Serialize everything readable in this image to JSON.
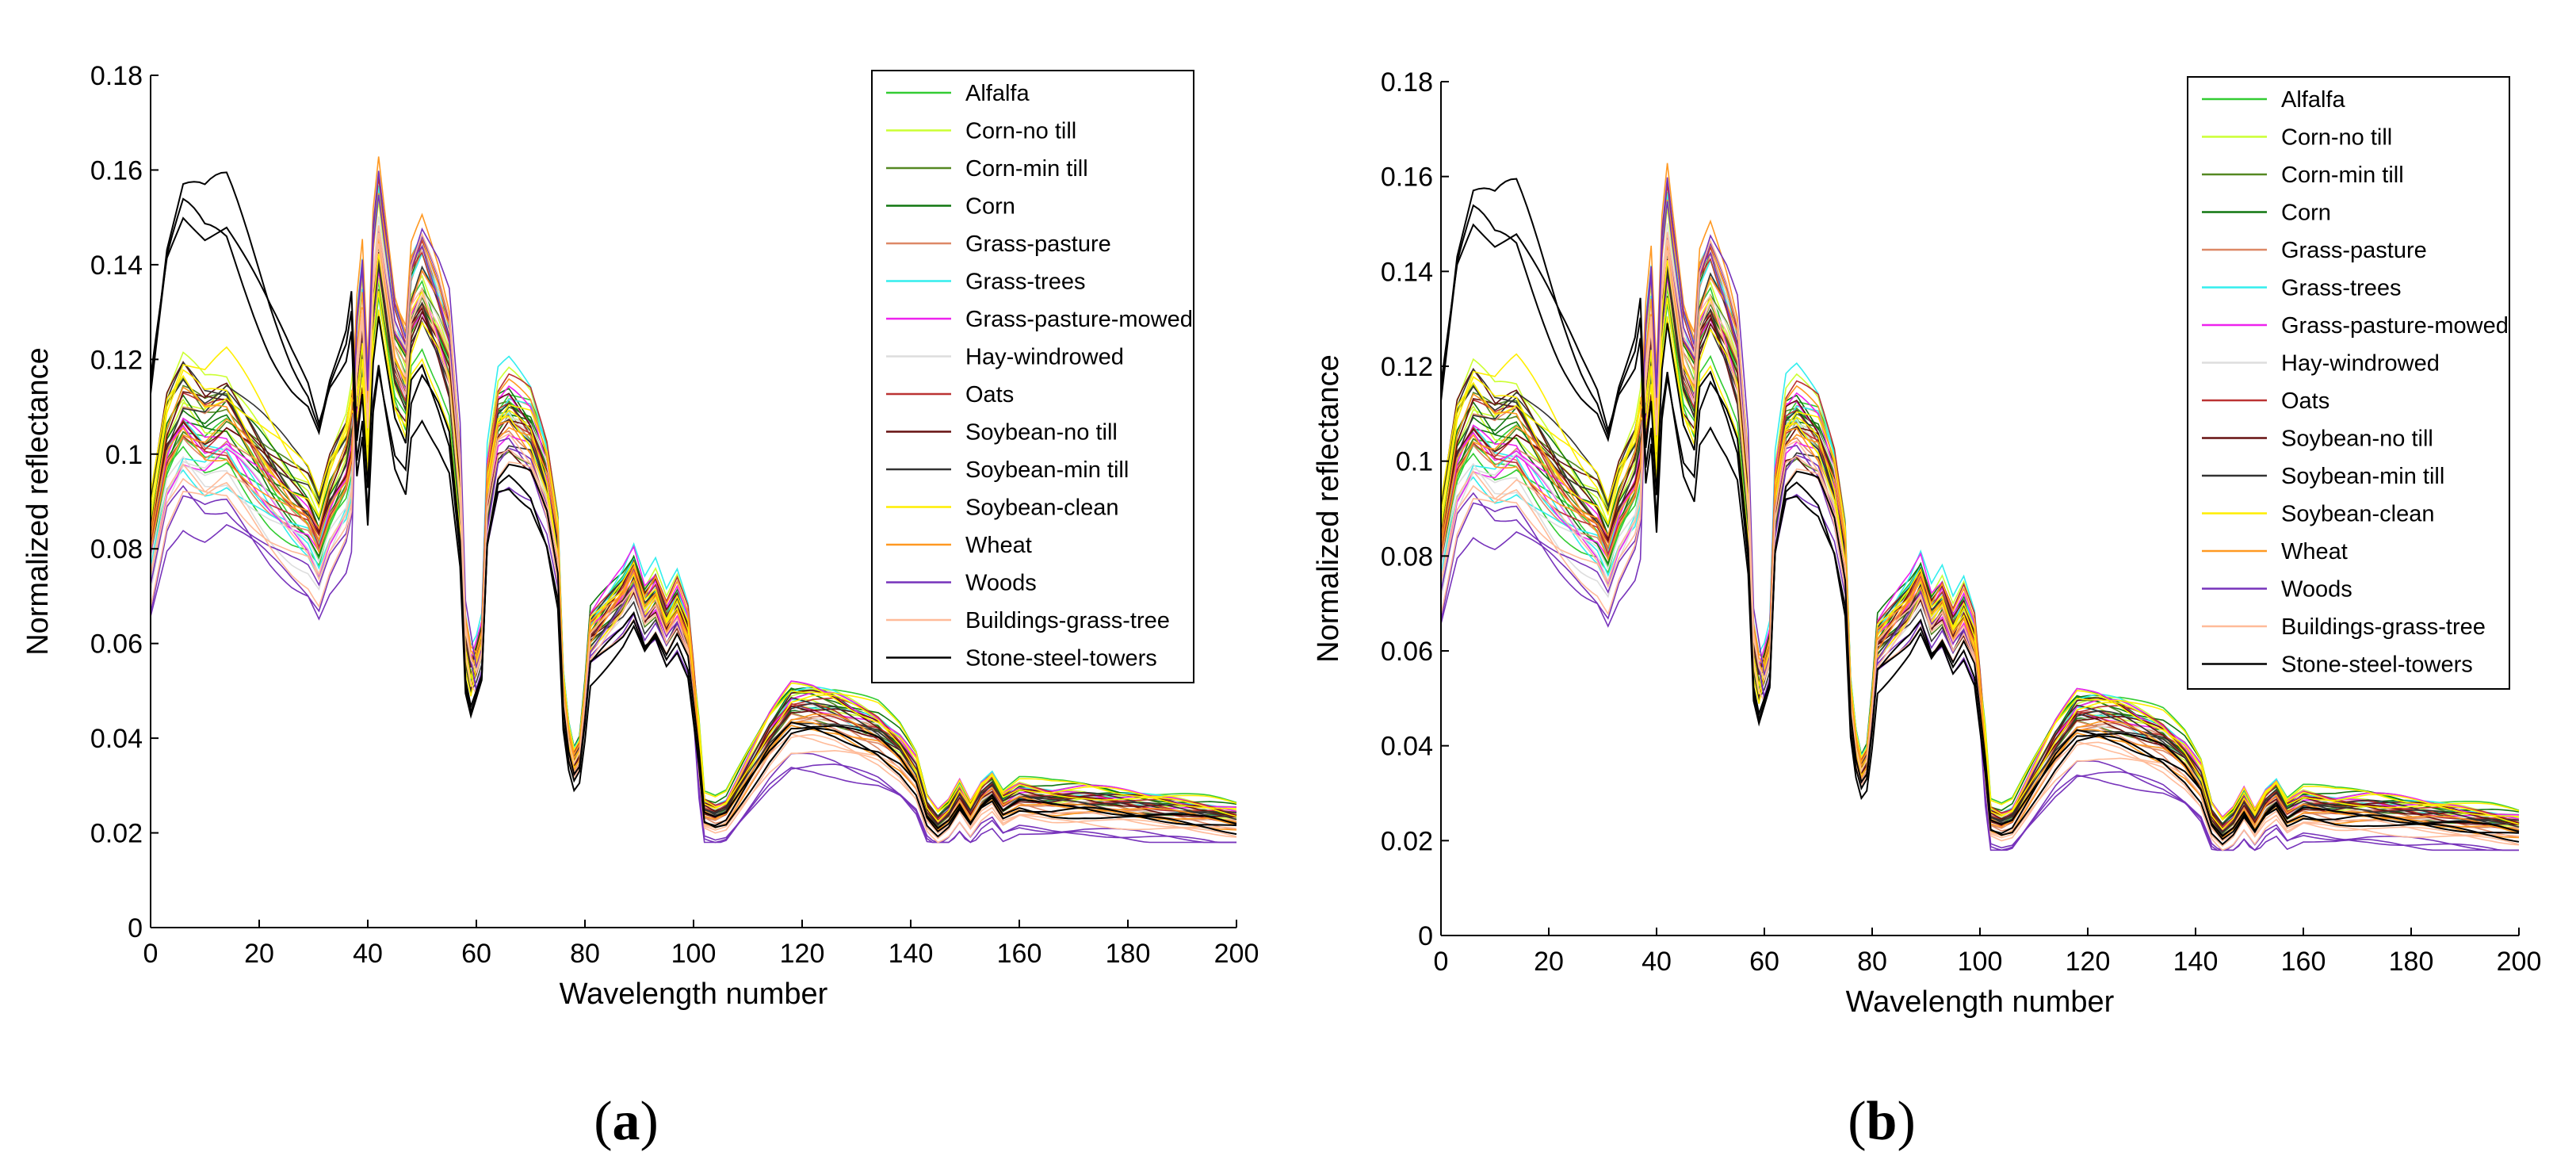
{
  "chart_data": [
    {
      "type": "line",
      "panel_label": "a",
      "xlabel": "Wavelength number",
      "ylabel": "Normalized reflectance",
      "xlim": [
        0,
        200
      ],
      "ylim": [
        0,
        0.18
      ],
      "x_ticks": [
        "0",
        "20",
        "40",
        "60",
        "80",
        "100",
        "120",
        "140",
        "160",
        "180",
        "200"
      ],
      "y_ticks": [
        "0",
        "0.02",
        "0.04",
        "0.06",
        "0.08",
        "0.1",
        "0.12",
        "0.14",
        "0.16",
        "0.18"
      ],
      "legend_position": "top-right",
      "series": [
        {
          "name": "Alfalfa",
          "color": "#33cc33"
        },
        {
          "name": "Corn-no till",
          "color": "#ccff33"
        },
        {
          "name": "Corn-min till",
          "color": "#558822"
        },
        {
          "name": "Corn",
          "color": "#117711"
        },
        {
          "name": "Grass-pasture",
          "color": "#dd8866"
        },
        {
          "name": "Grass-trees",
          "color": "#33eeee"
        },
        {
          "name": "Grass-pasture-mowed",
          "color": "#ee22ee"
        },
        {
          "name": "Hay-windrowed",
          "color": "#dddddd"
        },
        {
          "name": "Oats",
          "color": "#bb3333"
        },
        {
          "name": "Soybean-no till",
          "color": "#661111"
        },
        {
          "name": "Soybean-min till",
          "color": "#333333"
        },
        {
          "name": "Soybean-clean",
          "color": "#ffee00"
        },
        {
          "name": "Wheat",
          "color": "#ff9922"
        },
        {
          "name": "Woods",
          "color": "#7733bb"
        },
        {
          "name": "Buildings-grass-tree",
          "color": "#ffbb99"
        },
        {
          "name": "Stone-steel-towers",
          "color": "#000000"
        }
      ]
    },
    {
      "type": "line",
      "panel_label": "b",
      "xlabel": "Wavelength number",
      "ylabel": "Normalized reflectance",
      "xlim": [
        0,
        200
      ],
      "ylim": [
        0,
        0.18
      ],
      "x_ticks": [
        "0",
        "20",
        "40",
        "60",
        "80",
        "100",
        "120",
        "140",
        "160",
        "180",
        "200"
      ],
      "y_ticks": [
        "0",
        "0.02",
        "0.04",
        "0.06",
        "0.08",
        "0.1",
        "0.12",
        "0.14",
        "0.16",
        "0.18"
      ],
      "legend_position": "top-right",
      "series": [
        {
          "name": "Alfalfa",
          "color": "#33cc33"
        },
        {
          "name": "Corn-no till",
          "color": "#ccff33"
        },
        {
          "name": "Corn-min till",
          "color": "#558822"
        },
        {
          "name": "Corn",
          "color": "#117711"
        },
        {
          "name": "Grass-pasture",
          "color": "#dd8866"
        },
        {
          "name": "Grass-trees",
          "color": "#33eeee"
        },
        {
          "name": "Grass-pasture-mowed",
          "color": "#ee22ee"
        },
        {
          "name": "Hay-windrowed",
          "color": "#dddddd"
        },
        {
          "name": "Oats",
          "color": "#bb3333"
        },
        {
          "name": "Soybean-no till",
          "color": "#661111"
        },
        {
          "name": "Soybean-min till",
          "color": "#333333"
        },
        {
          "name": "Soybean-clean",
          "color": "#ffee00"
        },
        {
          "name": "Wheat",
          "color": "#ff9922"
        },
        {
          "name": "Woods",
          "color": "#7733bb"
        },
        {
          "name": "Buildings-grass-tree",
          "color": "#ffbb99"
        },
        {
          "name": "Stone-steel-towers",
          "color": "#000000"
        }
      ]
    }
  ]
}
